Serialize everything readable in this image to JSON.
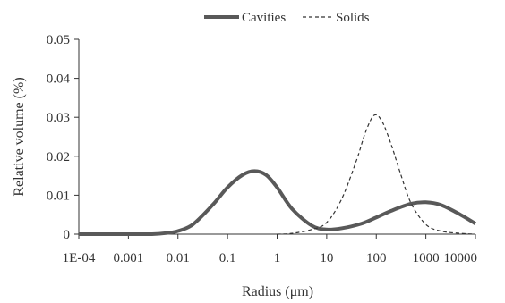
{
  "chart_data": {
    "type": "line",
    "x_scale": "log",
    "xlabel": "Radius (μm)",
    "ylabel": "Relative volume (%)",
    "xlim": [
      0.0001,
      10000
    ],
    "ylim": [
      0,
      0.05
    ],
    "x_ticks": [
      {
        "value": 0.0001,
        "label": "1E-04"
      },
      {
        "value": 0.001,
        "label": "0.001"
      },
      {
        "value": 0.01,
        "label": "0.01"
      },
      {
        "value": 0.1,
        "label": "0.1"
      },
      {
        "value": 1,
        "label": "1"
      },
      {
        "value": 10,
        "label": "10"
      },
      {
        "value": 100,
        "label": "100"
      },
      {
        "value": 1000,
        "label": "1000"
      },
      {
        "value": 10000,
        "label": "10000"
      }
    ],
    "y_ticks": [
      {
        "value": 0,
        "label": "0"
      },
      {
        "value": 0.01,
        "label": "0.01"
      },
      {
        "value": 0.02,
        "label": "0.02"
      },
      {
        "value": 0.03,
        "label": "0.03"
      },
      {
        "value": 0.04,
        "label": "0.04"
      },
      {
        "value": 0.05,
        "label": "0.05"
      }
    ],
    "grid": false,
    "legend_position": "top",
    "series": [
      {
        "name": "Cavities",
        "style": "solid",
        "color": "#595959",
        "x": [
          0.0001,
          0.001,
          0.003,
          0.006,
          0.01,
          0.02,
          0.05,
          0.1,
          0.2,
          0.35,
          0.6,
          1,
          2,
          5,
          10,
          20,
          50,
          100,
          200,
          500,
          1000,
          2000,
          5000,
          10000
        ],
        "y": [
          0,
          0,
          0,
          0.0003,
          0.0008,
          0.0025,
          0.0075,
          0.012,
          0.0152,
          0.0162,
          0.0152,
          0.012,
          0.0065,
          0.0022,
          0.0012,
          0.0015,
          0.0027,
          0.0043,
          0.006,
          0.0078,
          0.0082,
          0.0075,
          0.005,
          0.0027
        ]
      },
      {
        "name": "Solids",
        "style": "dashed",
        "color": "#333333",
        "x": [
          1,
          2,
          5,
          10,
          20,
          40,
          60,
          90,
          130,
          200,
          300,
          500,
          1000,
          2000,
          5000,
          10000
        ],
        "y": [
          0,
          0.0002,
          0.0012,
          0.003,
          0.009,
          0.019,
          0.026,
          0.0305,
          0.029,
          0.023,
          0.016,
          0.008,
          0.0025,
          0.0008,
          0.0002,
          0
        ]
      }
    ]
  }
}
